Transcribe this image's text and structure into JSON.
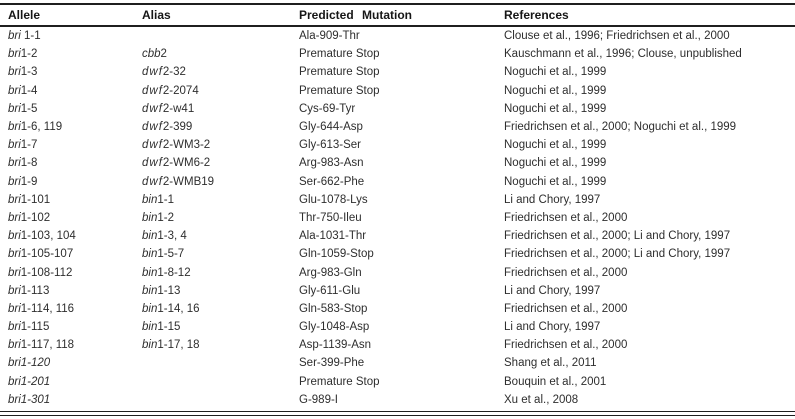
{
  "table": {
    "colors": {
      "background": "#ffffff",
      "text": "#2e2e2e",
      "header_text": "#161616",
      "rule": "#1f1f1f"
    },
    "columns": [
      {
        "label": "Allele"
      },
      {
        "label": "Alias"
      },
      {
        "label": "Predicted Mutation"
      },
      {
        "label": "References"
      }
    ],
    "rows": [
      {
        "allele_italic": "bri",
        "allele_rest": " 1-1",
        "alias_italic": "",
        "alias_rest": "",
        "mutation": "Ala-909-Thr",
        "references": "Clouse et al., 1996; Friedrichsen et al., 2000"
      },
      {
        "allele_italic": "bri",
        "allele_rest": "1-2",
        "alias_italic": "cbb",
        "alias_rest": "2",
        "mutation": "Premature Stop",
        "references": "Kauschmann et al., 1996; Clouse, unpublished"
      },
      {
        "allele_italic": "bri",
        "allele_rest": "1-3",
        "alias_italic": "dwf",
        "alias_rest": "2-32",
        "mutation": "Premature Stop",
        "references": "Noguchi et al., 1999"
      },
      {
        "allele_italic": "bri",
        "allele_rest": "1-4",
        "alias_italic": "dwf",
        "alias_rest": "2-2074",
        "mutation": "Premature Stop",
        "references": "Noguchi et al., 1999"
      },
      {
        "allele_italic": "bri",
        "allele_rest": "1-5",
        "alias_italic": "dwf",
        "alias_rest": "2-w41",
        "mutation": "Cys-69-Tyr",
        "references": "Noguchi et al., 1999"
      },
      {
        "allele_italic": "bri",
        "allele_rest": "1-6, 119",
        "alias_italic": "dwf",
        "alias_rest": "2-399",
        "mutation": "Gly-644-Asp",
        "references": "Friedrichsen et al., 2000; Noguchi et al., 1999"
      },
      {
        "allele_italic": "bri",
        "allele_rest": "1-7",
        "alias_italic": "dwf",
        "alias_rest": "2-WM3-2",
        "mutation": "Gly-613-Ser",
        "references": "Noguchi et al., 1999"
      },
      {
        "allele_italic": "bri",
        "allele_rest": "1-8",
        "alias_italic": "dwf",
        "alias_rest": "2-WM6-2",
        "mutation": "Arg-983-Asn",
        "references": "Noguchi et al., 1999"
      },
      {
        "allele_italic": "bri",
        "allele_rest": "1-9",
        "alias_italic": "dwf",
        "alias_rest": "2-WMB19",
        "mutation": "Ser-662-Phe",
        "references": "Noguchi et al., 1999"
      },
      {
        "allele_italic": "bri",
        "allele_rest": "1-101",
        "alias_italic": "bin",
        "alias_rest": "1-1",
        "mutation": "Glu-1078-Lys",
        "references": "Li and Chory, 1997"
      },
      {
        "allele_italic": "bri",
        "allele_rest": "1-102",
        "alias_italic": "bin",
        "alias_rest": "1-2",
        "mutation": "Thr-750-Ileu",
        "references": "Friedrichsen et al., 2000"
      },
      {
        "allele_italic": "bri",
        "allele_rest": "1-103, 104",
        "alias_italic": "bin",
        "alias_rest": "1-3, 4",
        "mutation": "Ala-1031-Thr",
        "references": "Friedrichsen et al., 2000; Li and Chory, 1997"
      },
      {
        "allele_italic": "bri",
        "allele_rest": "1-105-107",
        "alias_italic": "bin",
        "alias_rest": "1-5-7",
        "mutation": "Gln-1059-Stop",
        "references": "Friedrichsen et al., 2000; Li and Chory, 1997"
      },
      {
        "allele_italic": "bri",
        "allele_rest": "1-108-112",
        "alias_italic": "bin",
        "alias_rest": "1-8-12",
        "mutation": "Arg-983-Gln",
        "references": "Friedrichsen et al., 2000"
      },
      {
        "allele_italic": "bri",
        "allele_rest": "1-113",
        "alias_italic": "bin",
        "alias_rest": "1-13",
        "mutation": "Gly-611-Glu",
        "references": "Li and Chory, 1997"
      },
      {
        "allele_italic": "bri",
        "allele_rest": "1-114, 116",
        "alias_italic": "bin",
        "alias_rest": "1-14, 16",
        "mutation": "Gln-583-Stop",
        "references": "Friedrichsen et al., 2000"
      },
      {
        "allele_italic": "bri",
        "allele_rest": "1-115",
        "alias_italic": "bin",
        "alias_rest": "1-15",
        "mutation": "Gly-1048-Asp",
        "references": "Li and Chory, 1997"
      },
      {
        "allele_italic": "bri",
        "allele_rest": "1-117, 118",
        "alias_italic": "bin",
        "alias_rest": "1-17, 18",
        "mutation": "Asp-1139-Asn",
        "references": "Friedrichsen et al., 2000"
      },
      {
        "allele_italic": "bri1-120",
        "allele_rest": "",
        "alias_italic": "",
        "alias_rest": "",
        "mutation": "Ser-399-Phe",
        "references": "Shang et al., 2011"
      },
      {
        "allele_italic": "bri1-201",
        "allele_rest": "",
        "alias_italic": "",
        "alias_rest": "",
        "mutation": "Premature Stop",
        "references": "Bouquin et al., 2001"
      },
      {
        "allele_italic": "bri1-301",
        "allele_rest": "",
        "alias_italic": "",
        "alias_rest": "",
        "mutation": "G-989-I",
        "references": "Xu et al., 2008"
      }
    ]
  }
}
